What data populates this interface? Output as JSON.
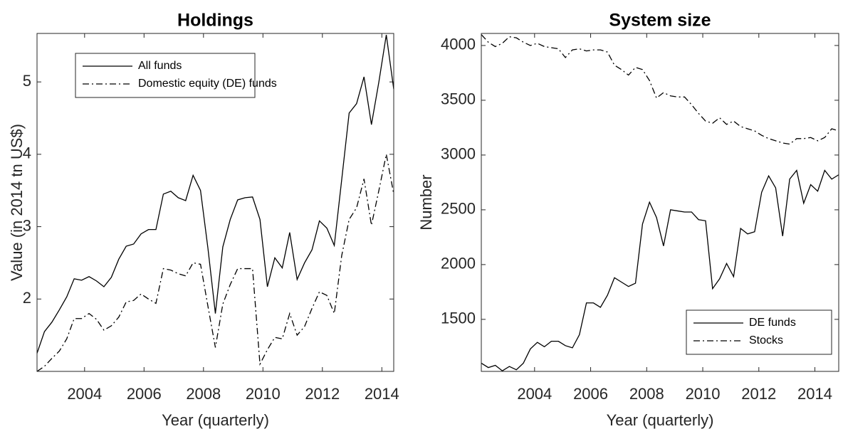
{
  "chart_data": [
    {
      "type": "line",
      "title": "Holdings",
      "x_label": "Year (quarterly)",
      "y_label": "Value (in 2014 tn US$)",
      "x": [
        2002.4,
        2002.65,
        2002.9,
        2003.15,
        2003.4,
        2003.65,
        2003.9,
        2004.15,
        2004.4,
        2004.65,
        2004.9,
        2005.15,
        2005.4,
        2005.65,
        2005.9,
        2006.15,
        2006.4,
        2006.65,
        2006.9,
        2007.15,
        2007.4,
        2007.65,
        2007.9,
        2008.15,
        2008.4,
        2008.65,
        2008.9,
        2009.15,
        2009.4,
        2009.65,
        2009.9,
        2010.15,
        2010.4,
        2010.65,
        2010.9,
        2011.15,
        2011.4,
        2011.65,
        2011.9,
        2012.15,
        2012.4,
        2012.65,
        2012.9,
        2013.15,
        2013.4,
        2013.65,
        2013.9,
        2014.15,
        2014.4
      ],
      "series": [
        {
          "name": "All funds",
          "color": "#000000",
          "linestyle": "solid",
          "values": [
            1.25,
            1.55,
            1.68,
            1.85,
            2.03,
            2.28,
            2.26,
            2.31,
            2.25,
            2.17,
            2.3,
            2.55,
            2.73,
            2.76,
            2.9,
            2.96,
            2.96,
            3.45,
            3.49,
            3.4,
            3.36,
            3.71,
            3.5,
            2.7,
            1.8,
            2.72,
            3.1,
            3.37,
            3.4,
            3.41,
            3.1,
            2.17,
            2.57,
            2.43,
            2.92,
            2.27,
            2.5,
            2.68,
            3.08,
            2.98,
            2.74,
            3.65,
            4.57,
            4.7,
            5.07,
            4.41,
            5.0,
            5.65,
            4.9
          ]
        },
        {
          "name": "Domestic equity (DE) funds",
          "color": "#000000",
          "linestyle": "dashdot",
          "values": [
            1.0,
            1.07,
            1.18,
            1.28,
            1.45,
            1.73,
            1.73,
            1.8,
            1.72,
            1.57,
            1.63,
            1.75,
            1.96,
            1.98,
            2.07,
            2.0,
            1.94,
            2.42,
            2.4,
            2.35,
            2.32,
            2.5,
            2.48,
            1.9,
            1.33,
            1.93,
            2.2,
            2.42,
            2.42,
            2.42,
            1.1,
            1.3,
            1.47,
            1.45,
            1.8,
            1.5,
            1.62,
            1.87,
            2.1,
            2.05,
            1.8,
            2.6,
            3.1,
            3.26,
            3.66,
            3.02,
            3.5,
            4.0,
            3.45
          ]
        }
      ],
      "xlim": [
        2002.4,
        2014.4
      ],
      "xticks": [
        2004,
        2006,
        2008,
        2010,
        2012,
        2014
      ],
      "ylim": [
        1.0,
        5.67
      ],
      "yticks": [
        2,
        3,
        4,
        5
      ],
      "grid": false,
      "legend": "northwest"
    },
    {
      "type": "line",
      "title": "System size",
      "x_label": "Year (quarterly)",
      "y_label": "Number",
      "x": [
        2002.1,
        2002.35,
        2002.6,
        2002.85,
        2003.1,
        2003.35,
        2003.6,
        2003.85,
        2004.1,
        2004.35,
        2004.6,
        2004.85,
        2005.1,
        2005.35,
        2005.6,
        2005.85,
        2006.1,
        2006.35,
        2006.6,
        2006.85,
        2007.1,
        2007.35,
        2007.6,
        2007.85,
        2008.1,
        2008.35,
        2008.6,
        2008.85,
        2009.1,
        2009.35,
        2009.6,
        2009.85,
        2010.1,
        2010.35,
        2010.6,
        2010.85,
        2011.1,
        2011.35,
        2011.6,
        2011.85,
        2012.1,
        2012.35,
        2012.6,
        2012.85,
        2013.1,
        2013.35,
        2013.6,
        2013.85,
        2014.1,
        2014.35,
        2014.6,
        2014.85
      ],
      "series": [
        {
          "name": "DE funds",
          "color": "#000000",
          "linestyle": "solid",
          "values": [
            1100,
            1060,
            1080,
            1030,
            1070,
            1040,
            1100,
            1230,
            1290,
            1250,
            1300,
            1300,
            1260,
            1240,
            1360,
            1650,
            1650,
            1610,
            1720,
            1880,
            1840,
            1800,
            1830,
            2370,
            2570,
            2430,
            2170,
            2500,
            2490,
            2480,
            2480,
            2410,
            2400,
            1780,
            1870,
            2010,
            1890,
            2330,
            2280,
            2300,
            2660,
            2810,
            2700,
            2260,
            2780,
            2860,
            2560,
            2730,
            2670,
            2860,
            2780,
            2820
          ]
        },
        {
          "name": "Stocks",
          "color": "#000000",
          "linestyle": "dashdot",
          "values": [
            4100,
            4030,
            3990,
            4020,
            4080,
            4070,
            4030,
            4000,
            4020,
            3990,
            3980,
            3970,
            3890,
            3960,
            3970,
            3950,
            3960,
            3960,
            3940,
            3820,
            3780,
            3730,
            3800,
            3780,
            3680,
            3520,
            3570,
            3540,
            3530,
            3530,
            3460,
            3380,
            3310,
            3290,
            3340,
            3280,
            3310,
            3260,
            3240,
            3220,
            3180,
            3150,
            3130,
            3110,
            3100,
            3150,
            3150,
            3160,
            3130,
            3160,
            3240,
            3220
          ]
        }
      ],
      "xlim": [
        2002.1,
        2014.85
      ],
      "xticks": [
        2004,
        2006,
        2008,
        2010,
        2012,
        2014
      ],
      "ylim": [
        1025,
        4110
      ],
      "yticks": [
        1500,
        2000,
        2500,
        3000,
        3500,
        4000
      ],
      "grid": false,
      "legend": "southeast"
    }
  ]
}
